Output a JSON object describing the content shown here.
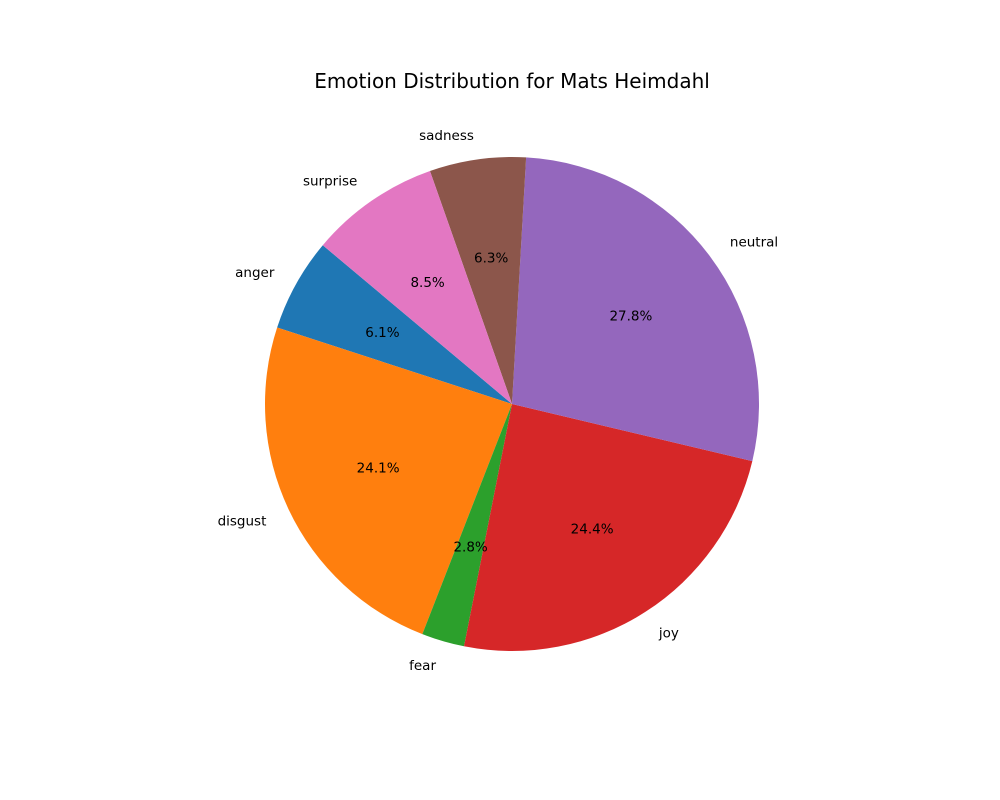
{
  "chart_data": {
    "type": "pie",
    "title": "Emotion Distribution for Mats Heimdahl",
    "start_angle_deg": 140,
    "direction": "counterclockwise",
    "slices": [
      {
        "label": "anger",
        "value": 6.1,
        "pct_label": "6.1%",
        "color": "#1f77b4"
      },
      {
        "label": "disgust",
        "value": 24.1,
        "pct_label": "24.1%",
        "color": "#ff7f0e"
      },
      {
        "label": "fear",
        "value": 2.8,
        "pct_label": "2.8%",
        "color": "#2ca02c"
      },
      {
        "label": "joy",
        "value": 24.4,
        "pct_label": "24.4%",
        "color": "#d62728"
      },
      {
        "label": "neutral",
        "value": 27.8,
        "pct_label": "27.8%",
        "color": "#9467bd"
      },
      {
        "label": "sadness",
        "value": 6.3,
        "pct_label": "6.3%",
        "color": "#8c564b"
      },
      {
        "label": "surprise",
        "value": 8.5,
        "pct_label": "8.5%",
        "color": "#e377c2"
      }
    ]
  }
}
